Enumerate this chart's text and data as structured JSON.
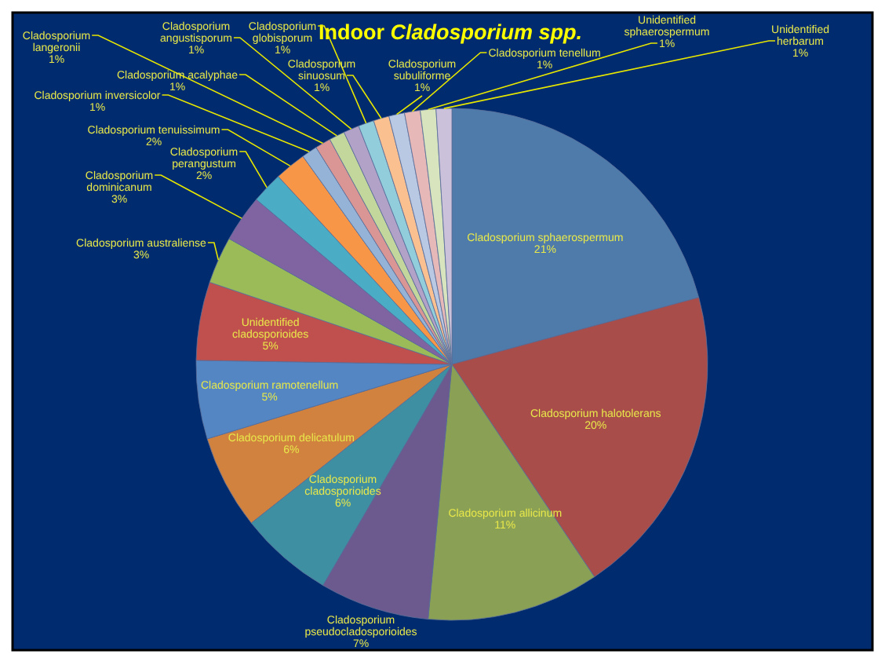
{
  "chart_data": {
    "type": "pie",
    "title": "Indoor Cladosporium spp.",
    "categories": [
      "Cladosporium sphaerospermum",
      "Cladosporium halotolerans",
      "Cladosporium allicinum",
      "Cladosporium pseudocladosporioides",
      "Cladosporium cladosporioides",
      "Cladosporium delicatulum",
      "Cladosporium ramotenellum",
      "Unidentified cladosporioides",
      "Cladosporium australiense",
      "Cladosporium dominicanum",
      "Cladosporium perangustum",
      "Cladosporium tenuissimum",
      "Cladosporium inversicolor",
      "Cladosporium langeronii",
      "Cladosporium acalyphae",
      "Cladosporium angustisporum",
      "Cladosporium globisporum",
      "Cladosporium sinuosum",
      "Cladosporium subuliforme",
      "Cladosporium tenellum",
      "Unidentified sphaerospermum",
      "Unidentified herbarum"
    ],
    "values": [
      21,
      20,
      11,
      7,
      6,
      6,
      5,
      5,
      3,
      3,
      2,
      2,
      1,
      1,
      1,
      1,
      1,
      1,
      1,
      1,
      1,
      1
    ],
    "value_labels": [
      "21%",
      "20%",
      "11%",
      "7%",
      "6%",
      "6%",
      "5%",
      "5%",
      "3%",
      "3%",
      "2%",
      "2%",
      "1%",
      "1%",
      "1%",
      "1%",
      "1%",
      "1%",
      "1%",
      "1%",
      "1%",
      "1%"
    ],
    "colors": [
      "#4f7bab",
      "#a84d4a",
      "#8aa054",
      "#6c5a8e",
      "#3f8fa3",
      "#d1823f",
      "#5386c2",
      "#c0504d",
      "#9bbb59",
      "#8064a2",
      "#4bacc6",
      "#f79646",
      "#95b3d7",
      "#d99694",
      "#c3d69b",
      "#b3a2c7",
      "#92cddc",
      "#fac090",
      "#b9c8e3",
      "#e6b9b8",
      "#d7e4bd",
      "#ccc1da"
    ]
  }
}
